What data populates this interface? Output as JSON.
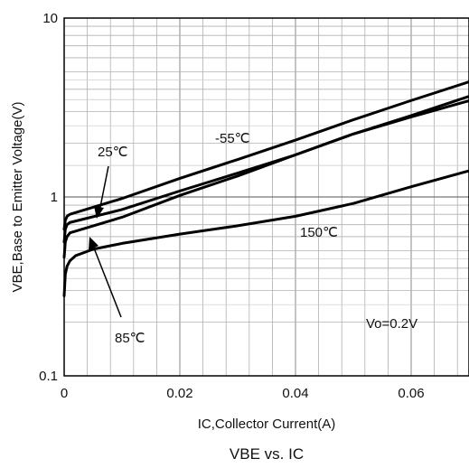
{
  "chart_data": {
    "type": "line",
    "title": "VBE vs. IC",
    "xlabel": "IC,Collector Current(A)",
    "ylabel": "VBE,Base to Emitter Voltage(V)",
    "y_scale": "log",
    "xlim": [
      0,
      0.07
    ],
    "ylim": [
      0.1,
      10
    ],
    "x_ticks": [
      0,
      0.02,
      0.04,
      0.06
    ],
    "x_tick_labels": [
      "0",
      "0.02",
      "0.04",
      "0.06"
    ],
    "y_ticks": [
      0.1,
      1,
      10
    ],
    "y_tick_labels": [
      "0.1",
      "1",
      "10"
    ],
    "grid": true,
    "annotation": "Vo=0.2V",
    "series": [
      {
        "name": "-55℃",
        "x": [
          0,
          0.0002,
          0.0005,
          0.001,
          0.01,
          0.02,
          0.03,
          0.04,
          0.05,
          0.06,
          0.07
        ],
        "y": [
          0.66,
          0.74,
          0.78,
          0.8,
          0.98,
          1.27,
          1.62,
          2.08,
          2.7,
          3.46,
          4.4
        ]
      },
      {
        "name": "25℃",
        "x": [
          0,
          0.0002,
          0.0005,
          0.001,
          0.01,
          0.02,
          0.03,
          0.04,
          0.05,
          0.06,
          0.07
        ],
        "y": [
          0.56,
          0.66,
          0.7,
          0.72,
          0.85,
          1.08,
          1.36,
          1.72,
          2.25,
          2.85,
          3.65
        ]
      },
      {
        "name": "85℃",
        "x": [
          0,
          0.0002,
          0.0005,
          0.001,
          0.01,
          0.02,
          0.03,
          0.04,
          0.05,
          0.06,
          0.07
        ],
        "y": [
          0.46,
          0.56,
          0.6,
          0.63,
          0.77,
          1.02,
          1.31,
          1.72,
          2.25,
          2.8,
          3.45
        ]
      },
      {
        "name": "150℃",
        "x": [
          0,
          0.0002,
          0.0005,
          0.001,
          0.002,
          0.005,
          0.01,
          0.02,
          0.03,
          0.04,
          0.05,
          0.06,
          0.07
        ],
        "y": [
          0.28,
          0.37,
          0.41,
          0.44,
          0.47,
          0.51,
          0.55,
          0.62,
          0.69,
          0.78,
          0.92,
          1.14,
          1.4
        ]
      }
    ]
  }
}
